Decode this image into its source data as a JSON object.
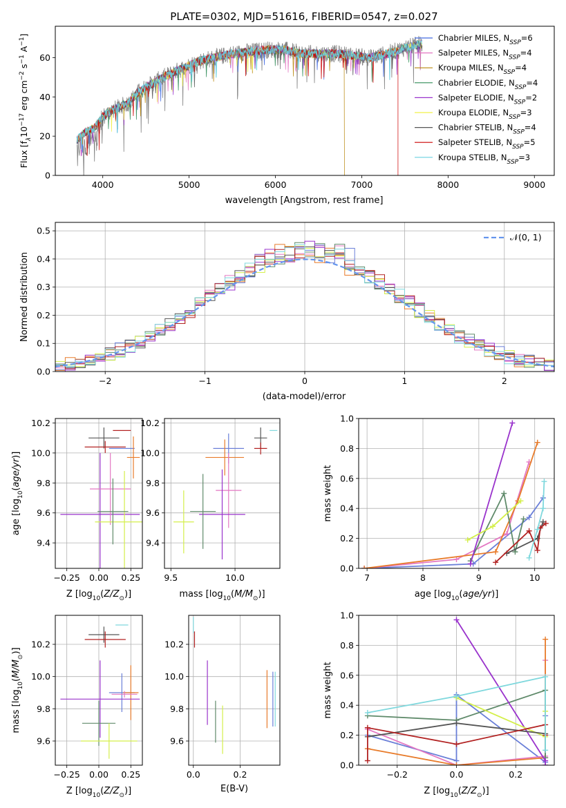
{
  "figure_title": "PLATE=0302, MJD=51616, FIBERID=0547, z=0.027",
  "colors": {
    "grid": "#b0b0b0",
    "normal_curve": "#6495ed",
    "fit_series": [
      "#4169e1",
      "#e377c2",
      "#b8860b",
      "#2e8b57",
      "#9932cc",
      "#f0f048",
      "#555555",
      "#cc0000",
      "#6ad0e0"
    ],
    "solution_series": [
      "#6a7fd8",
      "#e377c2",
      "#e87b2a",
      "#5f8a6a",
      "#9932cc",
      "#d4ef4a",
      "#555555",
      "#b22222",
      "#7fd8dd"
    ]
  },
  "chart_data": [
    {
      "type": "line",
      "panel": "spectrum",
      "xlabel": "wavelength [Angstrom, rest frame]",
      "ylabel": "Flux [fλ10⁻¹⁷ erg cm⁻² s⁻¹ A⁻¹]",
      "xlim": [
        3450,
        9230
      ],
      "ylim": [
        0,
        76
      ],
      "xticks": [
        4000,
        5000,
        6000,
        7000,
        8000,
        9000
      ],
      "yticks": [
        0,
        20,
        40,
        60
      ],
      "grid": false,
      "legend_position": "upper right",
      "observed_continuum": {
        "x": [
          3700,
          3800,
          3900,
          4000,
          4100,
          4200,
          4300,
          4400,
          4500,
          4700,
          4900,
          5100,
          5300,
          5500,
          5700,
          5900,
          6100,
          6300,
          6500,
          6700,
          6900,
          7100,
          7300,
          7500,
          7700
        ],
        "y": [
          18,
          22,
          24,
          30,
          33,
          35,
          37,
          42,
          45,
          50,
          54,
          58,
          60,
          62,
          63,
          64,
          64,
          62,
          62,
          62,
          61,
          60,
          62,
          65,
          67
        ]
      },
      "series": [
        {
          "name": "Chabrier MILES, N_SSP=6"
        },
        {
          "name": "Salpeter MILES, N_SSP=4"
        },
        {
          "name": "Kroupa MILES, N_SSP=4"
        },
        {
          "name": "Chabrier ELODIE, N_SSP=4"
        },
        {
          "name": "Salpeter ELODIE, N_SSP=2"
        },
        {
          "name": "Kroupa ELODIE, N_SSP=3"
        },
        {
          "name": "Chabrier STELIB, N_SSP=4"
        },
        {
          "name": "Salpeter STELIB, N_SSP=5"
        },
        {
          "name": "Kroupa STELIB, N_SSP=3"
        }
      ],
      "legend": [
        {
          "base": "Chabrier MILES, N",
          "sub": "SSP",
          "tail": "=6"
        },
        {
          "base": "Salpeter MILES, N",
          "sub": "SSP",
          "tail": "=4"
        },
        {
          "base": "Kroupa MILES, N",
          "sub": "SSP",
          "tail": "=4"
        },
        {
          "base": "Chabrier ELODIE, N",
          "sub": "SSP",
          "tail": "=4"
        },
        {
          "base": "Salpeter ELODIE, N",
          "sub": "SSP",
          "tail": "=2"
        },
        {
          "base": "Kroupa ELODIE, N",
          "sub": "SSP",
          "tail": "=3"
        },
        {
          "base": "Chabrier STELIB, N",
          "sub": "SSP",
          "tail": "=4"
        },
        {
          "base": "Salpeter STELIB, N",
          "sub": "SSP",
          "tail": "=5"
        },
        {
          "base": "Kroupa STELIB, N",
          "sub": "SSP",
          "tail": "=3"
        }
      ],
      "range_cutoffs": [
        {
          "series": "Kroupa MILES, N_SSP=4",
          "x": 6800
        },
        {
          "series": "Salpeter STELIB, N_SSP=5",
          "x": 7420
        }
      ]
    },
    {
      "type": "histogram",
      "panel": "residuals",
      "xlabel": "(data-model)/error",
      "ylabel": "Normed distribution",
      "xlim": [
        -2.5,
        2.5
      ],
      "ylim": [
        0,
        0.53
      ],
      "xticks": [
        -2,
        -1,
        0,
        1,
        2
      ],
      "yticks": [
        0.0,
        0.1,
        0.2,
        0.3,
        0.4,
        0.5
      ],
      "grid": true,
      "bin_width": 0.1,
      "reference_curve": {
        "name": "N(0,1)",
        "label": "𝒩(0, 1)",
        "mean": 0,
        "sigma": 1,
        "style": "dashed"
      },
      "legend_position": "upper right",
      "bin_peak_values": [
        0.45,
        0.51,
        0.47,
        0.46,
        0.44,
        0.42,
        0.39,
        0.41,
        0.5,
        0.47
      ]
    },
    {
      "type": "scatter",
      "panel": "age_vs_Z",
      "xlabel": "Z [log₁₀(Z/Z⊙)]",
      "ylabel": "age  [log₁₀(age/yr)]",
      "xlim": [
        -0.34,
        0.34
      ],
      "ylim": [
        9.23,
        10.23
      ],
      "xticks": [
        -0.25,
        0.0,
        0.25
      ],
      "yticks": [
        9.4,
        9.6,
        9.8,
        10.0,
        10.2
      ],
      "grid": true,
      "points": [
        {
          "color": 7,
          "x": 0.18,
          "y": 10.15,
          "xerr": 0.07,
          "yerr": 0.0
        },
        {
          "color": 6,
          "x": 0.04,
          "y": 10.1,
          "xerr": 0.12,
          "yerr": 0.07
        },
        {
          "color": 7,
          "x": 0.05,
          "y": 10.04,
          "xerr": 0.16,
          "yerr": 0.04
        },
        {
          "color": 0,
          "x": 0.18,
          "y": 10.03,
          "xerr": 0.1,
          "yerr": 0.0
        },
        {
          "color": 2,
          "x": 0.27,
          "y": 9.97,
          "xerr": 0.05,
          "yerr": 0.14
        },
        {
          "color": 4,
          "x": 0.01,
          "y": 9.59,
          "xerr": 0.31,
          "yerr": 0.41
        },
        {
          "color": 1,
          "x": 0.09,
          "y": 9.76,
          "xerr": 0.16,
          "yerr": 0.24
        },
        {
          "color": 5,
          "x": 0.2,
          "y": 9.54,
          "xerr": 0.23,
          "yerr": 0.34
        },
        {
          "color": 3,
          "x": 0.11,
          "y": 9.61,
          "xerr": 0.12,
          "yerr": 0.22
        }
      ]
    },
    {
      "type": "scatter",
      "panel": "age_vs_mass",
      "xlabel": "mass [log₁₀(M/M⊙)]",
      "xlim": [
        9.45,
        10.35
      ],
      "ylim": [
        9.23,
        10.23
      ],
      "xticks": [
        9.5,
        10.0
      ],
      "yticks": [
        9.4,
        9.6,
        9.8,
        10.0,
        10.2
      ],
      "grid": true,
      "points": [
        {
          "color": 8,
          "x": 10.3,
          "y": 10.15,
          "xerr": 0.03,
          "yerr": 0.0
        },
        {
          "color": 6,
          "x": 10.2,
          "y": 10.1,
          "xerr": 0.05,
          "yerr": 0.07
        },
        {
          "color": 7,
          "x": 10.2,
          "y": 10.03,
          "xerr": 0.05,
          "yerr": 0.04
        },
        {
          "color": 0,
          "x": 9.95,
          "y": 10.03,
          "xerr": 0.12,
          "yerr": 0.1
        },
        {
          "color": 2,
          "x": 9.92,
          "y": 9.97,
          "xerr": 0.15,
          "yerr": 0.12
        },
        {
          "color": 1,
          "x": 9.95,
          "y": 9.75,
          "xerr": 0.1,
          "yerr": 0.25
        },
        {
          "color": 4,
          "x": 9.9,
          "y": 9.59,
          "xerr": 0.18,
          "yerr": 0.3
        },
        {
          "color": 3,
          "x": 9.75,
          "y": 9.61,
          "xerr": 0.1,
          "yerr": 0.25
        },
        {
          "color": 5,
          "x": 9.6,
          "y": 9.54,
          "xerr": 0.08,
          "yerr": 0.21
        }
      ]
    },
    {
      "type": "line",
      "panel": "mass_weight_vs_age",
      "xlabel": "age  [log₁₀(age/yr)]",
      "ylabel": "mass weight",
      "xlim": [
        6.85,
        10.35
      ],
      "ylim": [
        0,
        1.0
      ],
      "xticks": [
        7,
        8,
        9,
        10
      ],
      "yticks": [
        0.0,
        0.2,
        0.4,
        0.6,
        0.8,
        1.0
      ],
      "grid": true,
      "series": [
        {
          "color": 0,
          "x": [
            6.95,
            8.9,
            9.9,
            10.15
          ],
          "y": [
            0.0,
            0.03,
            0.34,
            0.47
          ]
        },
        {
          "color": 1,
          "x": [
            6.95,
            8.6,
            9.5,
            9.9
          ],
          "y": [
            0.0,
            0.06,
            0.23,
            0.71
          ]
        },
        {
          "color": 2,
          "x": [
            6.95,
            9.3,
            9.7,
            10.05
          ],
          "y": [
            0.0,
            0.11,
            0.45,
            0.84
          ]
        },
        {
          "color": 3,
          "x": [
            8.85,
            9.45,
            9.65,
            9.8
          ],
          "y": [
            0.05,
            0.5,
            0.11,
            0.33
          ]
        },
        {
          "color": 4,
          "x": [
            8.85,
            9.6
          ],
          "y": [
            0.03,
            0.97
          ]
        },
        {
          "color": 5,
          "x": [
            8.8,
            9.25,
            9.75
          ],
          "y": [
            0.19,
            0.28,
            0.45
          ]
        },
        {
          "color": 6,
          "x": [
            9.5,
            10.05,
            10.15
          ],
          "y": [
            0.1,
            0.2,
            0.31
          ]
        },
        {
          "color": 7,
          "x": [
            9.3,
            9.9,
            10.05,
            10.1,
            10.2
          ],
          "y": [
            0.04,
            0.25,
            0.12,
            0.27,
            0.3
          ]
        },
        {
          "color": 8,
          "x": [
            9.9,
            10.05,
            10.15,
            10.17
          ],
          "y": [
            0.07,
            0.26,
            0.4,
            0.58
          ]
        }
      ]
    },
    {
      "type": "scatter",
      "panel": "mass_vs_Z",
      "xlabel": "Z [log₁₀(Z/Z⊙)]",
      "ylabel": "mass [log₁₀(M/M⊙)]",
      "xlim": [
        -0.34,
        0.34
      ],
      "ylim": [
        9.45,
        10.38
      ],
      "xticks": [
        -0.25,
        0.0,
        0.25
      ],
      "yticks": [
        9.6,
        9.8,
        10.0,
        10.2
      ],
      "grid": true,
      "points": [
        {
          "color": 8,
          "x": 0.18,
          "y": 10.32,
          "xerr": 0.05,
          "yerr": 0.0
        },
        {
          "color": 6,
          "x": 0.04,
          "y": 10.26,
          "xerr": 0.12,
          "yerr": 0.05
        },
        {
          "color": 7,
          "x": 0.05,
          "y": 10.23,
          "xerr": 0.16,
          "yerr": 0.05
        },
        {
          "color": 0,
          "x": 0.18,
          "y": 9.9,
          "xerr": 0.1,
          "yerr": 0.12
        },
        {
          "color": 2,
          "x": 0.25,
          "y": 9.9,
          "xerr": 0.06,
          "yerr": 0.17
        },
        {
          "color": 4,
          "x": 0.01,
          "y": 9.86,
          "xerr": 0.31,
          "yerr": 0.24
        },
        {
          "color": 1,
          "x": 0.2,
          "y": 9.89,
          "xerr": 0.1,
          "yerr": 0.02
        },
        {
          "color": 3,
          "x": 0.0,
          "y": 9.71,
          "xerr": 0.13,
          "yerr": 0.14
        },
        {
          "color": 5,
          "x": 0.08,
          "y": 9.6,
          "xerr": 0.22,
          "yerr": 0.11
        }
      ]
    },
    {
      "type": "scatter",
      "panel": "mass_vs_EBV",
      "xlabel": "E(B-V)",
      "xlim": [
        -0.02,
        0.37
      ],
      "ylim": [
        9.45,
        10.38
      ],
      "xticks": [
        0.0,
        0.2
      ],
      "yticks": [
        9.6,
        9.8,
        10.0,
        10.2
      ],
      "grid": true,
      "points": [
        {
          "color": 8,
          "x": 0.0,
          "y": 10.32,
          "xerr": 0.0,
          "yerr": 0.05
        },
        {
          "color": 7,
          "x": 0.005,
          "y": 10.23,
          "xerr": 0.0,
          "yerr": 0.05
        },
        {
          "color": 4,
          "x": 0.06,
          "y": 9.9,
          "xerr": 0.0,
          "yerr": 0.2
        },
        {
          "color": 3,
          "x": 0.095,
          "y": 9.72,
          "xerr": 0.0,
          "yerr": 0.13
        },
        {
          "color": 5,
          "x": 0.125,
          "y": 9.67,
          "xerr": 0.0,
          "yerr": 0.15
        },
        {
          "color": 2,
          "x": 0.315,
          "y": 9.86,
          "xerr": 0.0,
          "yerr": 0.18
        },
        {
          "color": 0,
          "x": 0.34,
          "y": 9.86,
          "xerr": 0.0,
          "yerr": 0.17
        },
        {
          "color": 8,
          "x": 0.35,
          "y": 9.86,
          "xerr": 0.0,
          "yerr": 0.17
        }
      ]
    },
    {
      "type": "line",
      "panel": "mass_weight_vs_Z",
      "xlabel": "Z [log₁₀(Z/Z⊙)]",
      "ylabel": "mass weight",
      "xlim": [
        -0.33,
        0.33
      ],
      "ylim": [
        0,
        1.0
      ],
      "xticks": [
        -0.2,
        0.0,
        0.2
      ],
      "yticks": [
        0.0,
        0.2,
        0.4,
        0.6,
        0.8,
        1.0
      ],
      "grid": true,
      "series": [
        {
          "color": 0,
          "x": [
            -0.3,
            0.0,
            0.0,
            0.3,
            0.3
          ],
          "y": [
            0.2,
            0.03,
            0.47,
            0.02,
            0.33
          ]
        },
        {
          "color": 1,
          "x": [
            -0.3,
            0.0,
            0.3,
            0.3
          ],
          "y": [
            0.24,
            0.0,
            0.06,
            0.7
          ]
        },
        {
          "color": 2,
          "x": [
            -0.3,
            0.0,
            0.3,
            0.3
          ],
          "y": [
            0.11,
            0.0,
            0.05,
            0.84
          ]
        },
        {
          "color": 3,
          "x": [
            -0.3,
            0.0,
            0.3,
            0.3
          ],
          "y": [
            0.33,
            0.3,
            0.5,
            0.05
          ]
        },
        {
          "color": 4,
          "x": [
            0.0,
            0.3,
            0.3
          ],
          "y": [
            0.97,
            0.03,
            0.0
          ]
        },
        {
          "color": 5,
          "x": [
            0.0,
            0.3,
            0.3
          ],
          "y": [
            0.45,
            0.19,
            0.36
          ]
        },
        {
          "color": 6,
          "x": [
            -0.3,
            0.0,
            0.3
          ],
          "y": [
            0.19,
            0.28,
            0.21
          ]
        },
        {
          "color": 7,
          "x": [
            -0.3,
            -0.3,
            0.0,
            0.3,
            0.3
          ],
          "y": [
            0.03,
            0.25,
            0.14,
            0.27,
            0.2
          ]
        },
        {
          "color": 8,
          "x": [
            -0.3,
            0.0,
            0.3,
            0.3
          ],
          "y": [
            0.35,
            0.46,
            0.59,
            0.1
          ]
        }
      ]
    }
  ]
}
